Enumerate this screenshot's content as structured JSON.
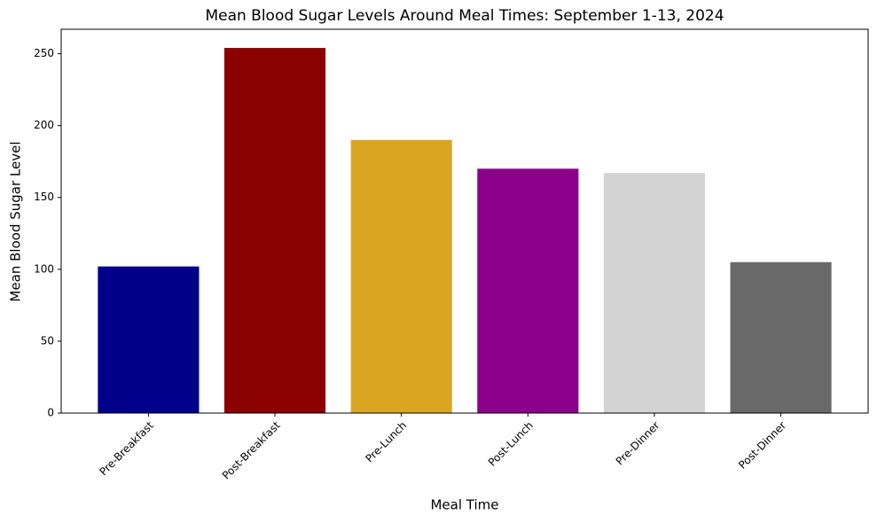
{
  "chart_data": {
    "type": "bar",
    "title": "Mean Blood Sugar Levels Around Meal Times: September 1-13, 2024",
    "x_label": "Meal Time",
    "y_label": "Mean Blood Sugar Level",
    "categories": [
      "Pre-Breakfast",
      "Post-Breakfast",
      "Pre-Lunch",
      "Post-Lunch",
      "Pre-Dinner",
      "Post-Dinner"
    ],
    "values": [
      102,
      254,
      190,
      170,
      167,
      105
    ],
    "colors": [
      "#00008b",
      "#8b0000",
      "#daa520",
      "#8b008b",
      "#d3d3d3",
      "#696969"
    ],
    "ylim": [
      0,
      267
    ],
    "yticks": [
      0,
      50,
      100,
      150,
      200,
      250
    ],
    "grid": false
  }
}
